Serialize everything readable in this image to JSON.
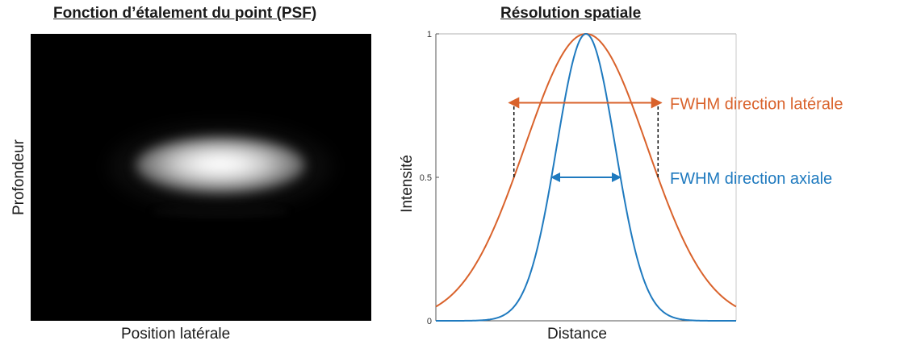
{
  "colors": {
    "lateral": "#d9622b",
    "axial": "#1f7abf",
    "annotation_lateral": "#d9622b",
    "annotation_axial": "#1f7abf"
  },
  "psf": {
    "title": "Fonction d’étalement du point (PSF)",
    "xlabel": "Position latérale",
    "ylabel": "Profondeur"
  },
  "chart_data": {
    "type": "line",
    "title": "Résolution spatiale",
    "xlabel": "Distance",
    "ylabel": "Intensité",
    "ylim": [
      0,
      1
    ],
    "yticks": [
      "0",
      "0.5",
      "1"
    ],
    "grid": false,
    "series": [
      {
        "color": "#d9622b",
        "center": 0.5,
        "fwhm": 0.48
      },
      {
        "color": "#1f7abf",
        "center": 0.5,
        "fwhm": 0.23
      }
    ],
    "annotations": [
      {
        "text": "FWHM direction latérale",
        "y": 0.76,
        "color": "#d9622b"
      },
      {
        "text": "FWHM direction axiale",
        "y": 0.5,
        "color": "#1f7abf"
      }
    ]
  }
}
